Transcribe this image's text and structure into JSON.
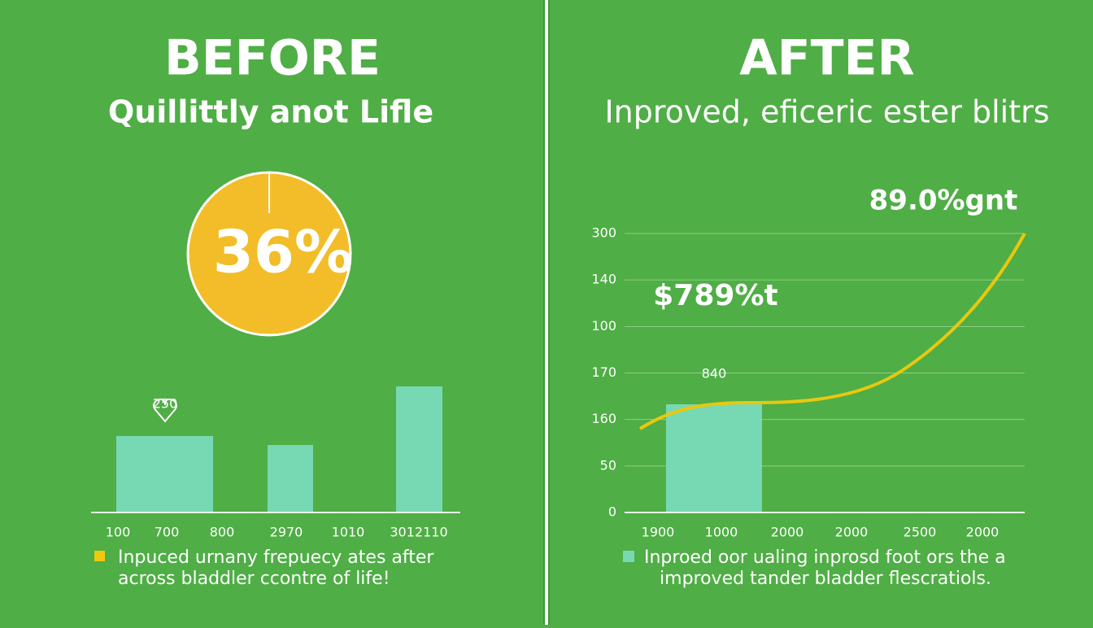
{
  "before": {
    "title": "BEFORE",
    "subtitle": "Quillittly anot Lifle",
    "pie_label": "36%",
    "bar_label": "250",
    "x_labels": [
      "100",
      "700",
      "800",
      "2970",
      "1010",
      "3012110"
    ],
    "legend": [
      "Inpuced urnany frepuecy ates after",
      "across bladdler ccontre of life!"
    ]
  },
  "after": {
    "title": "AFTER",
    "subtitle": "Inproved, eficeric ester blitrs",
    "annotation_top": "89.0%gnt",
    "annotation_mid": "$789%t",
    "bar_label": "840",
    "y_labels": [
      "300",
      "140",
      "100",
      "170",
      "160",
      "50",
      "0"
    ],
    "x_labels": [
      "1900",
      "1000",
      "2000",
      "2000",
      "2500",
      "2000"
    ],
    "legend": [
      "Inproed oor ualing inprosd foot ors the a",
      "improved tander bladder flescratiols."
    ]
  }
}
